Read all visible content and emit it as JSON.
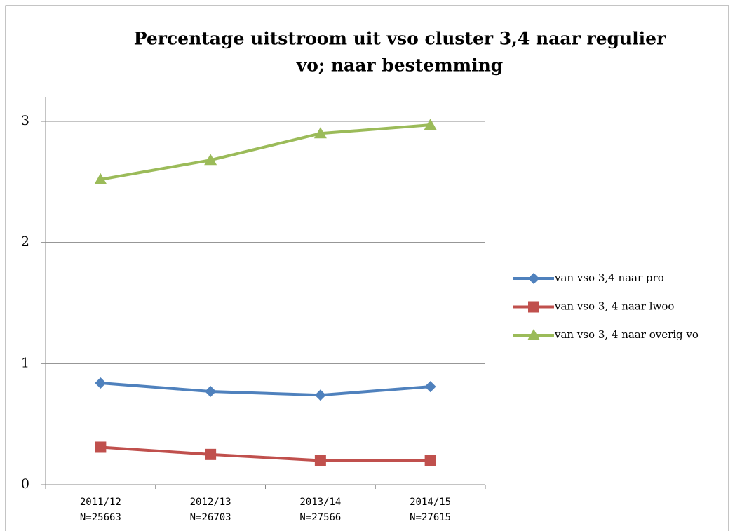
{
  "chart_data": {
    "type": "line",
    "title": [
      "Percentage uitstroom uit vso cluster 3,4 naar regulier",
      "vo; naar bestemming"
    ],
    "categories": [
      [
        "2011/12",
        "N=25663"
      ],
      [
        "2012/13",
        "N=26703"
      ],
      [
        "2013/14",
        "N=27566"
      ],
      [
        "2014/15",
        "N=27615"
      ]
    ],
    "series": [
      {
        "name": "van vso 3,4 naar pro",
        "color": "#4f81bd",
        "marker": "diamond",
        "values": [
          0.84,
          0.77,
          0.74,
          0.81
        ]
      },
      {
        "name": "van vso 3, 4 naar lwoo",
        "color": "#c0504d",
        "marker": "square",
        "values": [
          0.31,
          0.25,
          0.2,
          0.2
        ]
      },
      {
        "name": "van vso 3, 4 naar overig vo",
        "color": "#9bbb59",
        "marker": "triangle",
        "values": [
          2.52,
          2.68,
          2.9,
          2.97
        ]
      }
    ],
    "ylim": [
      0,
      3
    ],
    "yticks": [
      0,
      1,
      2,
      3
    ],
    "grid": true,
    "legend": "right"
  }
}
